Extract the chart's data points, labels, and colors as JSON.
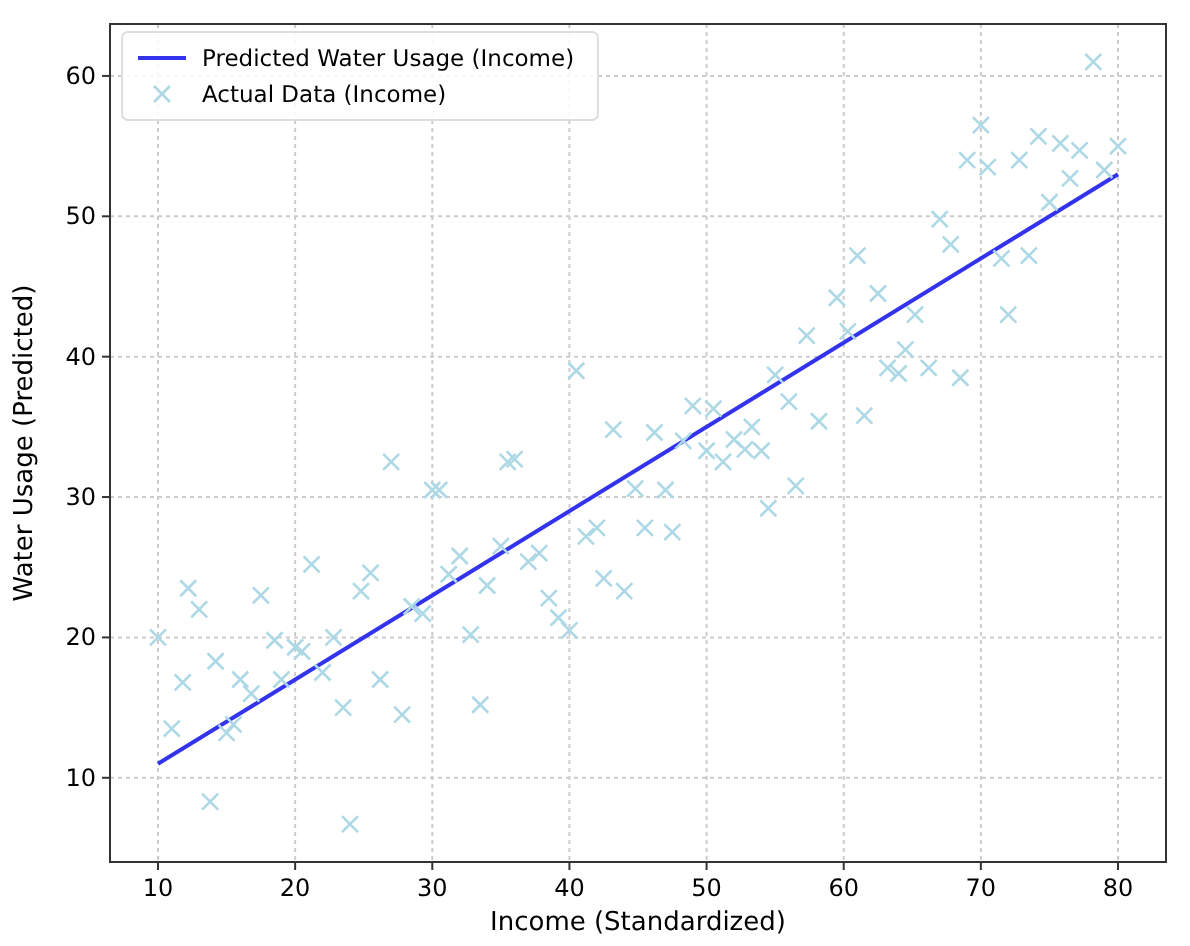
{
  "chart_data": {
    "type": "scatter",
    "xlabel": "Income (Standardized)",
    "ylabel": "Water Usage (Predicted)",
    "xlim": [
      6.5,
      83.5
    ],
    "ylim": [
      4,
      63.7
    ],
    "xticks": [
      10,
      20,
      30,
      40,
      50,
      60,
      70,
      80
    ],
    "yticks": [
      10,
      20,
      30,
      40,
      50,
      60
    ],
    "grid": true,
    "legend": "top left",
    "series": [
      {
        "name": "Predicted Water Usage (Income)",
        "type": "line",
        "color": "#3333ee",
        "marker": "none",
        "line_style": "solid",
        "x": [
          10,
          80
        ],
        "values": [
          11,
          53
        ]
      },
      {
        "name": "Actual Data (Income)",
        "color": "#add8e6",
        "marker": "cross",
        "x": [
          10,
          11,
          11.8,
          12.2,
          13,
          13.8,
          14.2,
          15,
          15.5,
          16,
          16.8,
          17.5,
          18.5,
          19,
          20,
          20.5,
          21.2,
          22,
          22.8,
          23.5,
          24,
          24.8,
          25.5,
          26.2,
          27,
          27.8,
          28.5,
          29.3,
          30,
          30.5,
          31.2,
          32,
          32.8,
          33.5,
          34,
          35,
          35.5,
          36,
          37,
          37.8,
          38.5,
          39.2,
          40,
          40.5,
          41.2,
          42,
          42.5,
          43.2,
          44,
          44.8,
          45.5,
          46.2,
          47,
          47.5,
          48.3,
          49,
          50,
          50.5,
          51.2,
          52,
          52.8,
          53.3,
          54,
          54.5,
          55,
          56,
          56.5,
          57.3,
          58.2,
          59.5,
          60.3,
          61,
          61.5,
          62.5,
          63.2,
          64,
          64.5,
          65.2,
          66.2,
          67,
          67.8,
          68.5,
          69,
          70,
          70.5,
          71.5,
          72,
          72.8,
          73.5,
          74.2,
          75,
          75.8,
          76.5,
          77.2,
          78.2,
          79,
          80
        ],
        "values": [
          20,
          13.5,
          16.8,
          23.5,
          22,
          8.3,
          18.3,
          13.2,
          13.8,
          17,
          16,
          23,
          19.8,
          17,
          19.3,
          19,
          25.2,
          17.5,
          20,
          15,
          6.7,
          23.3,
          24.6,
          17,
          32.5,
          14.5,
          22.2,
          21.7,
          30.5,
          30.5,
          24.5,
          25.8,
          20.2,
          15.2,
          23.7,
          26.5,
          32.5,
          32.7,
          25.4,
          26,
          22.8,
          21.4,
          20.5,
          39,
          27.2,
          27.8,
          24.2,
          34.8,
          23.3,
          30.6,
          27.8,
          34.6,
          30.5,
          27.5,
          34,
          36.5,
          33.3,
          36.3,
          32.5,
          34.1,
          33.4,
          35,
          33.3,
          29.2,
          38.7,
          36.8,
          30.8,
          41.5,
          35.4,
          44.2,
          41.8,
          47.2,
          35.8,
          44.5,
          39.2,
          38.8,
          40.5,
          43,
          39.2,
          49.8,
          48,
          38.5,
          54,
          56.5,
          53.5,
          47,
          43,
          54,
          47.2,
          55.7,
          51,
          55.2,
          52.7,
          54.7,
          61,
          53.3,
          55
        ]
      }
    ]
  }
}
